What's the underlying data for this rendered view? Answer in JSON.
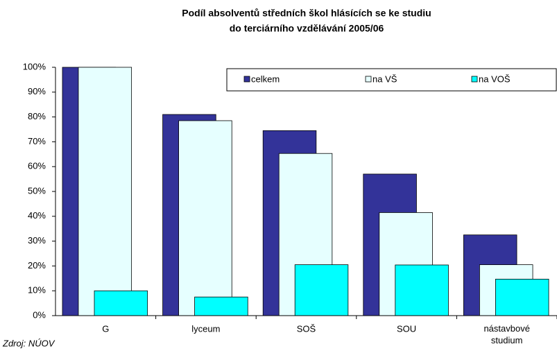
{
  "chart_data": {
    "type": "bar",
    "title": [
      "Podíl absolventů středních škol hlásících se ke studiu",
      "do terciárního vzdělávání 2005/06"
    ],
    "source": "Zdroj: NÚOV",
    "categories": [
      "G",
      "lyceum",
      "SOŠ",
      "SOU",
      "nástavbové studium"
    ],
    "series": [
      {
        "name": "celkem",
        "color": "#333399",
        "values": [
          100,
          81,
          74.5,
          57,
          32.5
        ]
      },
      {
        "name": "na VŠ",
        "color": "#e6ffff",
        "values": [
          100,
          78.5,
          65.3,
          41.5,
          20.5
        ]
      },
      {
        "name": "na VOŠ",
        "color": "#00ffff",
        "values": [
          10,
          7.5,
          20.5,
          20.4,
          14.7
        ]
      }
    ],
    "ylim": [
      0,
      100
    ],
    "yticks": [
      {
        "value": 0,
        "label": "0%"
      },
      {
        "value": 10,
        "label": "10%"
      },
      {
        "value": 20,
        "label": "20%"
      },
      {
        "value": 30,
        "label": "30%"
      },
      {
        "value": 40,
        "label": "40%"
      },
      {
        "value": 50,
        "label": "50%"
      },
      {
        "value": 60,
        "label": "60%"
      },
      {
        "value": 70,
        "label": "70%"
      },
      {
        "value": 80,
        "label": "80%"
      },
      {
        "value": 90,
        "label": "90%"
      },
      {
        "value": 100,
        "label": "100%"
      }
    ],
    "grid": false,
    "legend": "top-right"
  }
}
